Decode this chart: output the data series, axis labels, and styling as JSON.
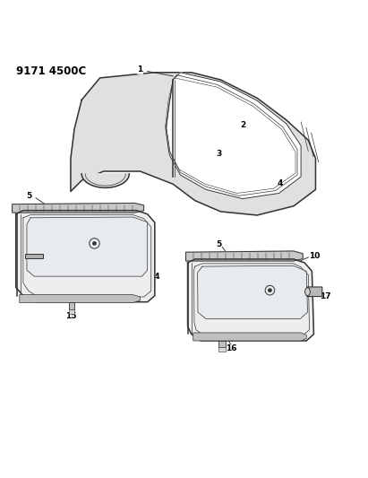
{
  "title_text": "9171 4500C",
  "background_color": "#ffffff",
  "line_color": "#333333",
  "text_color": "#000000",
  "fig_width": 4.11,
  "fig_height": 5.33,
  "dpi": 100
}
